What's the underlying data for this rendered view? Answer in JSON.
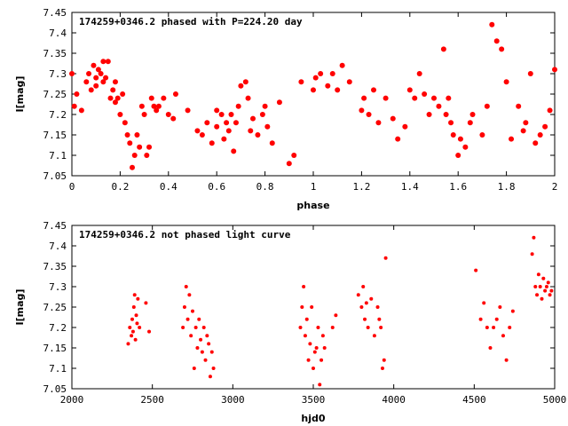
{
  "chart_data": [
    {
      "type": "scatter",
      "title": "174259+0346.2 phased with P=224.20 day",
      "xlabel": "phase",
      "ylabel": "I[mag]",
      "xlim": [
        0,
        2
      ],
      "ylim": [
        7.45,
        7.05
      ],
      "y_inverted": true,
      "xticks": [
        "0",
        "0.2",
        "0.4",
        "0.6",
        "0.8",
        "1",
        "1.2",
        "1.4",
        "1.6",
        "1.8",
        "2"
      ],
      "yticks": [
        "7.05",
        "7.1",
        "7.15",
        "7.2",
        "7.25",
        "7.3",
        "7.35",
        "7.4",
        "7.45"
      ],
      "grid": false,
      "marker_color": "#ff0000",
      "x": [
        0.0,
        0.01,
        0.02,
        0.04,
        0.06,
        0.07,
        0.08,
        0.09,
        0.1,
        0.1,
        0.11,
        0.12,
        0.13,
        0.13,
        0.14,
        0.15,
        0.16,
        0.17,
        0.18,
        0.18,
        0.19,
        0.2,
        0.21,
        0.22,
        0.23,
        0.24,
        0.25,
        0.26,
        0.27,
        0.28,
        0.29,
        0.3,
        0.31,
        0.32,
        0.33,
        0.34,
        0.35,
        0.36,
        0.38,
        0.4,
        0.42,
        0.43,
        0.48,
        0.52,
        0.54,
        0.56,
        0.58,
        0.6,
        0.6,
        0.62,
        0.63,
        0.64,
        0.65,
        0.66,
        0.67,
        0.68,
        0.69,
        0.7,
        0.72,
        0.73,
        0.74,
        0.75,
        0.77,
        0.79,
        0.8,
        0.81,
        0.83,
        0.86,
        0.9,
        0.92,
        0.95,
        1.0,
        1.01,
        1.03,
        1.06,
        1.08,
        1.1,
        1.12,
        1.15,
        1.2,
        1.21,
        1.23,
        1.25,
        1.27,
        1.3,
        1.33,
        1.35,
        1.38,
        1.4,
        1.42,
        1.44,
        1.46,
        1.48,
        1.5,
        1.52,
        1.54,
        1.55,
        1.56,
        1.57,
        1.58,
        1.6,
        1.61,
        1.63,
        1.65,
        1.66,
        1.7,
        1.72,
        1.74,
        1.76,
        1.78,
        1.8,
        1.82,
        1.85,
        1.87,
        1.88,
        1.9,
        1.92,
        1.94,
        1.96,
        1.98,
        2.0
      ],
      "y": [
        7.3,
        7.22,
        7.25,
        7.21,
        7.28,
        7.3,
        7.26,
        7.32,
        7.29,
        7.27,
        7.31,
        7.3,
        7.28,
        7.33,
        7.29,
        7.33,
        7.24,
        7.26,
        7.28,
        7.23,
        7.24,
        7.2,
        7.25,
        7.18,
        7.15,
        7.13,
        7.07,
        7.1,
        7.15,
        7.12,
        7.22,
        7.2,
        7.1,
        7.12,
        7.24,
        7.22,
        7.21,
        7.22,
        7.24,
        7.2,
        7.19,
        7.25,
        7.21,
        7.16,
        7.15,
        7.18,
        7.13,
        7.17,
        7.21,
        7.2,
        7.14,
        7.18,
        7.16,
        7.2,
        7.11,
        7.18,
        7.22,
        7.27,
        7.28,
        7.24,
        7.16,
        7.19,
        7.15,
        7.2,
        7.22,
        7.17,
        7.13,
        7.23,
        7.08,
        7.1,
        7.28,
        7.26,
        7.29,
        7.3,
        7.27,
        7.3,
        7.26,
        7.32,
        7.28,
        7.21,
        7.24,
        7.2,
        7.26,
        7.18,
        7.24,
        7.19,
        7.14,
        7.17,
        7.26,
        7.24,
        7.3,
        7.25,
        7.2,
        7.24,
        7.22,
        7.36,
        7.2,
        7.24,
        7.18,
        7.15,
        7.1,
        7.14,
        7.12,
        7.18,
        7.2,
        7.15,
        7.22,
        7.42,
        7.38,
        7.36,
        7.28,
        7.14,
        7.22,
        7.16,
        7.18,
        7.3,
        7.13,
        7.15,
        7.17,
        7.21,
        7.31
      ],
      "series": [
        {
          "marker": "filled-circle",
          "size": 6
        }
      ]
    },
    {
      "type": "scatter",
      "title": "174259+0346.2 not phased light curve",
      "xlabel": "hjd0",
      "ylabel": "I[mag]",
      "xlim": [
        2000,
        5000
      ],
      "ylim": [
        7.45,
        7.05
      ],
      "y_inverted": true,
      "xticks": [
        "2000",
        "2500",
        "3000",
        "3500",
        "4000",
        "4500",
        "5000"
      ],
      "yticks": [
        "7.05",
        "7.1",
        "7.15",
        "7.2",
        "7.25",
        "7.3",
        "7.35",
        "7.4",
        "7.45"
      ],
      "grid": false,
      "marker_color": "#ff0000",
      "x": [
        2350,
        2360,
        2370,
        2375,
        2380,
        2385,
        2390,
        2395,
        2400,
        2405,
        2410,
        2420,
        2460,
        2480,
        2690,
        2700,
        2710,
        2720,
        2730,
        2740,
        2750,
        2760,
        2770,
        2780,
        2790,
        2800,
        2810,
        2820,
        2830,
        2840,
        2850,
        2860,
        2870,
        2880,
        3420,
        3430,
        3440,
        3450,
        3460,
        3470,
        3480,
        3490,
        3500,
        3510,
        3520,
        3530,
        3540,
        3550,
        3560,
        3570,
        3620,
        3640,
        3780,
        3800,
        3810,
        3820,
        3830,
        3840,
        3860,
        3880,
        3900,
        3910,
        3920,
        3930,
        3940,
        3950,
        4510,
        4540,
        4560,
        4580,
        4600,
        4620,
        4640,
        4660,
        4680,
        4700,
        4720,
        4740,
        4860,
        4870,
        4880,
        4890,
        4900,
        4910,
        4920,
        4930,
        4940,
        4950,
        4960,
        4970,
        4980
      ],
      "y": [
        7.16,
        7.2,
        7.18,
        7.22,
        7.19,
        7.25,
        7.28,
        7.17,
        7.23,
        7.21,
        7.27,
        7.2,
        7.26,
        7.19,
        7.2,
        7.25,
        7.3,
        7.22,
        7.28,
        7.18,
        7.24,
        7.1,
        7.2,
        7.15,
        7.22,
        7.17,
        7.14,
        7.2,
        7.12,
        7.18,
        7.16,
        7.08,
        7.14,
        7.1,
        7.2,
        7.25,
        7.3,
        7.18,
        7.22,
        7.12,
        7.16,
        7.25,
        7.1,
        7.14,
        7.15,
        7.2,
        7.06,
        7.12,
        7.18,
        7.15,
        7.2,
        7.23,
        7.28,
        7.25,
        7.3,
        7.22,
        7.26,
        7.2,
        7.27,
        7.18,
        7.25,
        7.22,
        7.2,
        7.1,
        7.12,
        7.37,
        7.34,
        7.22,
        7.26,
        7.2,
        7.15,
        7.2,
        7.22,
        7.25,
        7.18,
        7.12,
        7.2,
        7.24,
        7.38,
        7.42,
        7.3,
        7.28,
        7.33,
        7.3,
        7.27,
        7.32,
        7.29,
        7.3,
        7.31,
        7.28,
        7.29
      ],
      "series": [
        {
          "marker": "filled-circle",
          "size": 4
        }
      ]
    }
  ]
}
